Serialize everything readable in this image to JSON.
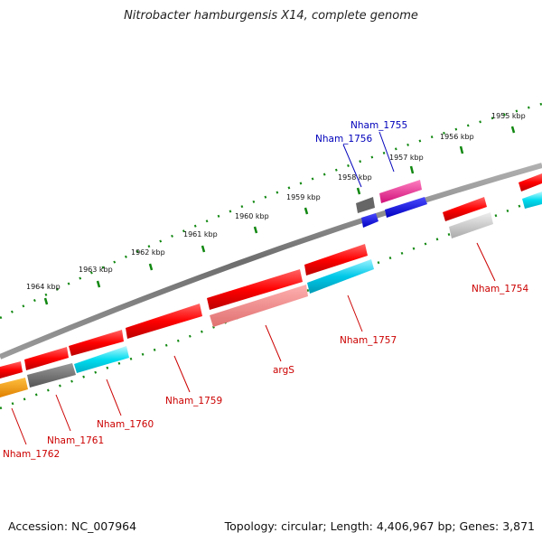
{
  "title": "Nitrobacter hamburgensis X14, complete genome",
  "footer": {
    "accession": "Accession: NC_007964",
    "topology": "Topology: circular; Length: 4,406,967 bp; Genes: 3,871"
  },
  "scale_labels": [
    "1955 kbp",
    "1956 kbp",
    "1957 kbp",
    "1958 kbp",
    "1959 kbp",
    "1960 kbp",
    "1961 kbp",
    "1962 kbp",
    "1963 kbp",
    "1964 kbp"
  ],
  "colors": {
    "backbone": "#7a7a7a",
    "scale": "#118811",
    "label_red": "#cc0000",
    "label_blue": "#0000bb"
  },
  "gene_labels": [
    {
      "text": "Nham_1755",
      "color": "#0000bb"
    },
    {
      "text": "Nham_1756",
      "color": "#0000bb"
    },
    {
      "text": "Nham_1754",
      "color": "#cc0000"
    },
    {
      "text": "Nham_1757",
      "color": "#cc0000"
    },
    {
      "text": "argS",
      "color": "#cc0000"
    },
    {
      "text": "Nham_1759",
      "color": "#cc0000"
    },
    {
      "text": "Nham_1760",
      "color": "#cc0000"
    },
    {
      "text": "Nham_1761",
      "color": "#cc0000"
    },
    {
      "text": "Nham_1762",
      "color": "#cc0000"
    }
  ]
}
